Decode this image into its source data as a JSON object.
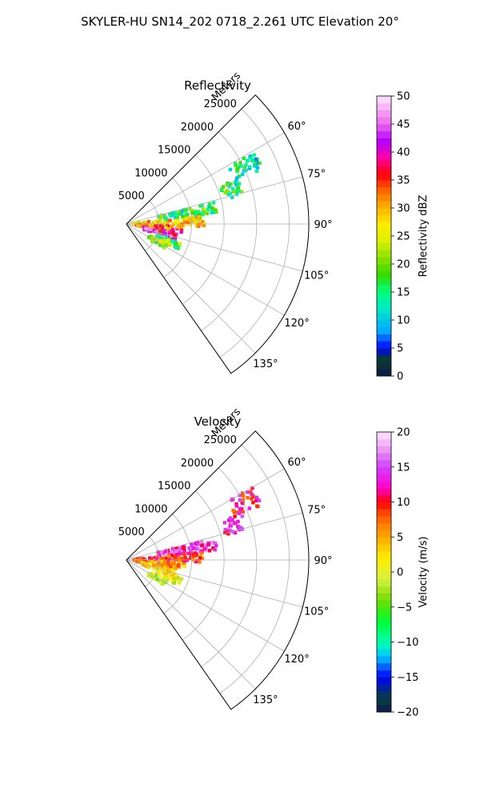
{
  "suptitle": "SKYLER-HU  SN14_202  0718_2.261 UTC Elevation 20°",
  "chart_data": [
    {
      "type": "polar-sector-heatmap",
      "title": "Reflectivity",
      "radial_label": "Meters",
      "radial_ticks": [
        5000,
        10000,
        15000,
        20000,
        25000
      ],
      "r_max": 28000,
      "azimuth_range_deg": [
        45,
        145
      ],
      "azimuth_ticks": [
        "60°",
        "75°",
        "90°",
        "105°",
        "120°",
        "135°"
      ],
      "azimuth_tick_values": [
        60,
        75,
        90,
        105,
        120,
        135
      ],
      "colorbar": {
        "label": "Reflectivity dBZ",
        "range": [
          0,
          50
        ],
        "ticks": [
          "0",
          "5",
          "10",
          "15",
          "20",
          "25",
          "30",
          "35",
          "40",
          "45",
          "50"
        ],
        "tick_values": [
          0,
          5,
          10,
          15,
          20,
          25,
          30,
          35,
          40,
          45,
          50
        ]
      },
      "echo_regions": [
        {
          "az_deg": 64,
          "r_from": 18000,
          "r_to": 22500,
          "value": 14
        },
        {
          "az_deg": 72,
          "r_from": 15500,
          "r_to": 19000,
          "value": 15
        },
        {
          "az_deg": 80,
          "r_from": 5000,
          "r_to": 14000,
          "value": 16
        },
        {
          "az_deg": 88,
          "r_from": 1000,
          "r_to": 12000,
          "value": 27
        },
        {
          "az_deg": 96,
          "r_from": 1500,
          "r_to": 9000,
          "value": 34
        },
        {
          "az_deg": 104,
          "r_from": 2500,
          "r_to": 8000,
          "value": 42
        },
        {
          "az_deg": 112,
          "r_from": 5000,
          "r_to": 9000,
          "value": 18
        },
        {
          "az_deg": 120,
          "r_from": 4000,
          "r_to": 7000,
          "value": 22
        }
      ]
    },
    {
      "type": "polar-sector-heatmap",
      "title": "Velocity",
      "radial_label": "Meters",
      "radial_ticks": [
        5000,
        10000,
        15000,
        20000,
        25000
      ],
      "r_max": 28000,
      "azimuth_range_deg": [
        45,
        145
      ],
      "azimuth_ticks": [
        "60°",
        "75°",
        "90°",
        "105°",
        "120°",
        "135°"
      ],
      "azimuth_tick_values": [
        60,
        75,
        90,
        105,
        120,
        135
      ],
      "colorbar": {
        "label": "Velocity (m/s)",
        "range": [
          -20,
          20
        ],
        "ticks": [
          "−20",
          "−15",
          "−10",
          "−5",
          "0",
          "5",
          "10",
          "15",
          "20"
        ],
        "tick_values": [
          -20,
          -15,
          -10,
          -5,
          0,
          5,
          10,
          15,
          20
        ]
      },
      "echo_regions": [
        {
          "az_deg": 64,
          "r_from": 18000,
          "r_to": 22500,
          "value": 11
        },
        {
          "az_deg": 72,
          "r_from": 15500,
          "r_to": 19000,
          "value": 13
        },
        {
          "az_deg": 80,
          "r_from": 5000,
          "r_to": 14000,
          "value": 14
        },
        {
          "az_deg": 88,
          "r_from": 1000,
          "r_to": 12000,
          "value": 9
        },
        {
          "az_deg": 96,
          "r_from": 1500,
          "r_to": 9000,
          "value": 6
        },
        {
          "az_deg": 104,
          "r_from": 2500,
          "r_to": 8000,
          "value": 3
        },
        {
          "az_deg": 112,
          "r_from": 5000,
          "r_to": 9000,
          "value": 1
        },
        {
          "az_deg": 120,
          "r_from": 4000,
          "r_to": 7000,
          "value": -2
        }
      ]
    }
  ]
}
